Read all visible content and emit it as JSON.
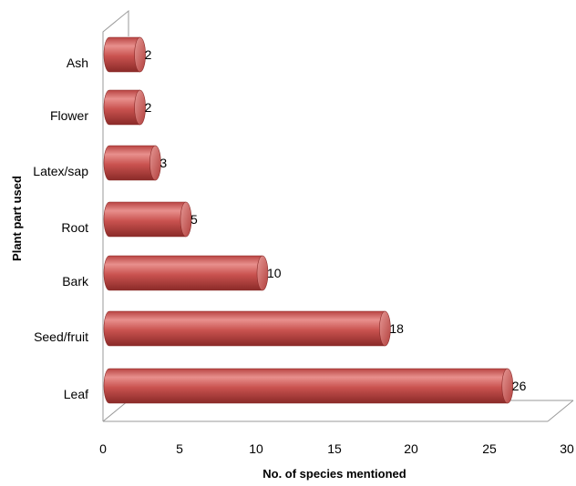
{
  "chart_data": {
    "type": "bar",
    "orientation": "horizontal",
    "style": "3d-cylinder",
    "categories": [
      "Ash",
      "Flower",
      "Latex/sap",
      "Root",
      "Bark",
      "Seed/fruit",
      "Leaf"
    ],
    "values": [
      2,
      2,
      3,
      5,
      10,
      18,
      26
    ],
    "data_labels": [
      "2",
      "2",
      "3",
      "5",
      "10",
      "18",
      "26"
    ],
    "xlabel": "No. of species mentioned",
    "ylabel": "Plant part used",
    "xlim": [
      0,
      30
    ],
    "xticks": [
      "0",
      "5",
      "10",
      "15",
      "20",
      "25",
      "30"
    ],
    "grid": false,
    "legend": "none",
    "bar_color": "#c0504d"
  }
}
